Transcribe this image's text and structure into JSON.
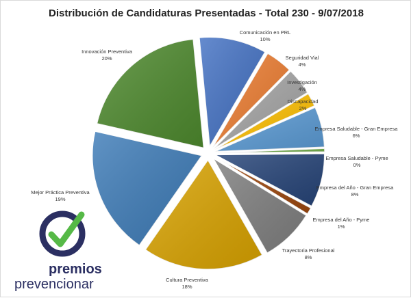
{
  "chart_data": {
    "type": "pie",
    "title": "Distribución de Candidaturas Presentadas - Total 230 - 9/07/2018",
    "slices": [
      {
        "label": "Comunicación en PRL",
        "value": 10,
        "value_label": "10%",
        "color": "#4472C4"
      },
      {
        "label": "Seguridad Vial",
        "value": 4,
        "value_label": "4%",
        "color": "#ED7D31"
      },
      {
        "label": "Investigación",
        "value": 4,
        "value_label": "4%",
        "color": "#A5A5A5"
      },
      {
        "label": "Discapacidad",
        "value": 2,
        "value_label": "2%",
        "color": "#FFC000"
      },
      {
        "label": "Empresa Saludable - Gran Empresa",
        "value": 6,
        "value_label": "6%",
        "color": "#5B9BD5"
      },
      {
        "label": "Empresa Saludable - Pyme",
        "value": 0.5,
        "value_label": "0%",
        "color": "#70AD47"
      },
      {
        "label": "Empresa del Año - Gran Empresa",
        "value": 8,
        "value_label": "8%",
        "color": "#264478"
      },
      {
        "label": "Empresa del Año - Pyme",
        "value": 1,
        "value_label": "1%",
        "color": "#9E480E"
      },
      {
        "label": "Trayectoria Profesional",
        "value": 8,
        "value_label": "8%",
        "color": "#7F7F7F"
      },
      {
        "label": "Cultura Preventiva",
        "value": 18,
        "value_label": "18%",
        "color": "#D9A300"
      },
      {
        "label": "Mejor Práctica Preventiva",
        "value": 19,
        "value_label": "19%",
        "color": "#3E7CB8"
      },
      {
        "label": "Innovación Preventiva",
        "value": 20,
        "value_label": "20%",
        "color": "#4E8A2E"
      }
    ],
    "legend": "none",
    "explode": true
  },
  "logo": {
    "line1": "premios",
    "line2": "prevencionar",
    "ring_color": "#2B2F62",
    "check_color": "#56B947"
  }
}
